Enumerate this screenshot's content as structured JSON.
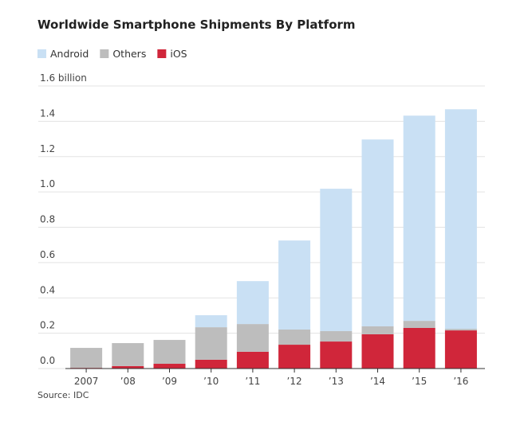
{
  "chart_data": {
    "type": "stacked_bar",
    "title": "Worldwide Smartphone Shipments By Platform",
    "source": "Source: IDC",
    "categories": [
      "2007",
      "’08",
      "’09",
      "’10",
      "’11",
      "’12",
      "’13",
      "’14",
      "’15",
      "’16"
    ],
    "series": [
      {
        "name": "Android",
        "color": "#c9e0f4",
        "values": [
          0,
          0,
          0,
          0.068,
          0.243,
          0.504,
          0.806,
          1.058,
          1.162,
          1.243
        ]
      },
      {
        "name": "Others",
        "color": "#bdbdbd",
        "values": [
          0.113,
          0.13,
          0.135,
          0.184,
          0.157,
          0.086,
          0.059,
          0.045,
          0.04,
          0.009
        ]
      },
      {
        "name": "iOS",
        "color": "#d0263a",
        "values": [
          0.004,
          0.014,
          0.027,
          0.05,
          0.095,
          0.135,
          0.153,
          0.194,
          0.23,
          0.216
        ]
      }
    ],
    "ylim": [
      0,
      1.6
    ],
    "yticks": [
      {
        "value": 0,
        "label": "0.0"
      },
      0.2,
      0.4,
      0.6,
      0.8,
      {
        "value": 1,
        "label": "1.0"
      },
      1.2,
      1.4,
      {
        "value": 1.6,
        "label": "1.6 billion"
      }
    ],
    "grid": true
  }
}
